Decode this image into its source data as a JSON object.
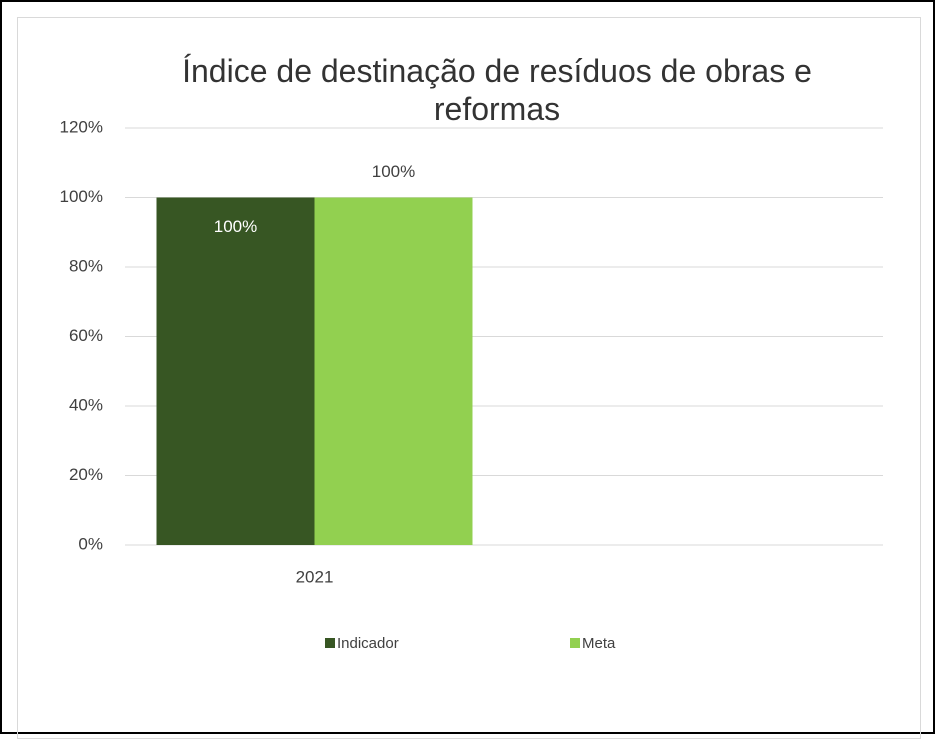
{
  "chart_data": {
    "type": "bar",
    "title": "Índice de destinação de resíduos de obras e reformas",
    "categories": [
      "2021",
      null
    ],
    "series": [
      {
        "name": "Indicador",
        "color": "#375623",
        "values": [
          100,
          null
        ],
        "value_labels": [
          "100%",
          null
        ]
      },
      {
        "name": "Meta",
        "color": "#92d050",
        "values": [
          100,
          null
        ],
        "value_labels": [
          "100%",
          null
        ]
      }
    ],
    "ylim": [
      0,
      120
    ],
    "yticks": [
      {
        "value": 0,
        "label": "0%"
      },
      {
        "value": 20,
        "label": "20%"
      },
      {
        "value": 40,
        "label": "40%"
      },
      {
        "value": 60,
        "label": "60%"
      },
      {
        "value": 80,
        "label": "80%"
      },
      {
        "value": 100,
        "label": "100%"
      },
      {
        "value": 120,
        "label": "120%"
      }
    ],
    "grid": true,
    "legend": "bottom"
  }
}
